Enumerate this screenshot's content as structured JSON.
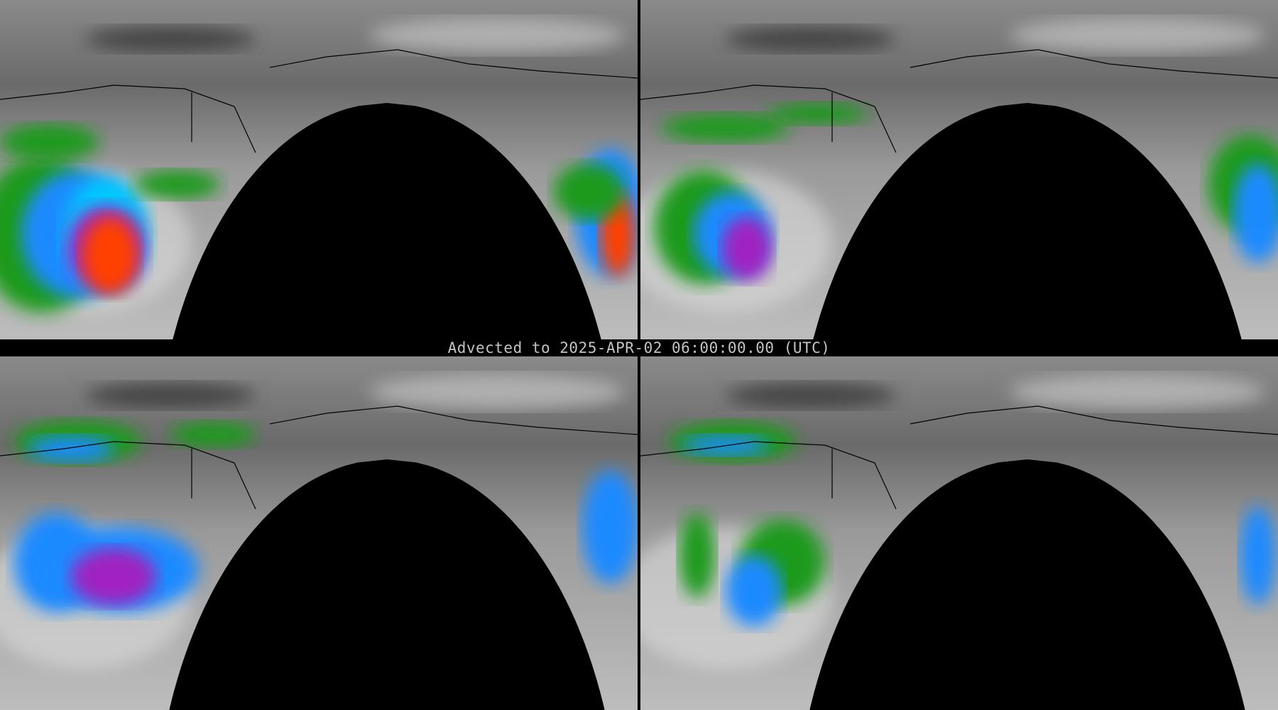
{
  "caption": "Advected to 2025-APR-02 06:00:00.00 (UTC)",
  "layout": "2x2 panel grid",
  "colors": {
    "background": "#000000",
    "caption_text": "#c4c4c4",
    "scale": [
      "#5a5a5a",
      "#d8d8d8",
      "#1a9a1a",
      "#1a8aff",
      "#00c8ff",
      "#a020c0",
      "#ff4000"
    ]
  },
  "panels": [
    {
      "id": "top-left",
      "intensity": "high"
    },
    {
      "id": "top-right",
      "intensity": "medium"
    },
    {
      "id": "bottom-left",
      "intensity": "medium"
    },
    {
      "id": "bottom-right",
      "intensity": "low"
    }
  ]
}
